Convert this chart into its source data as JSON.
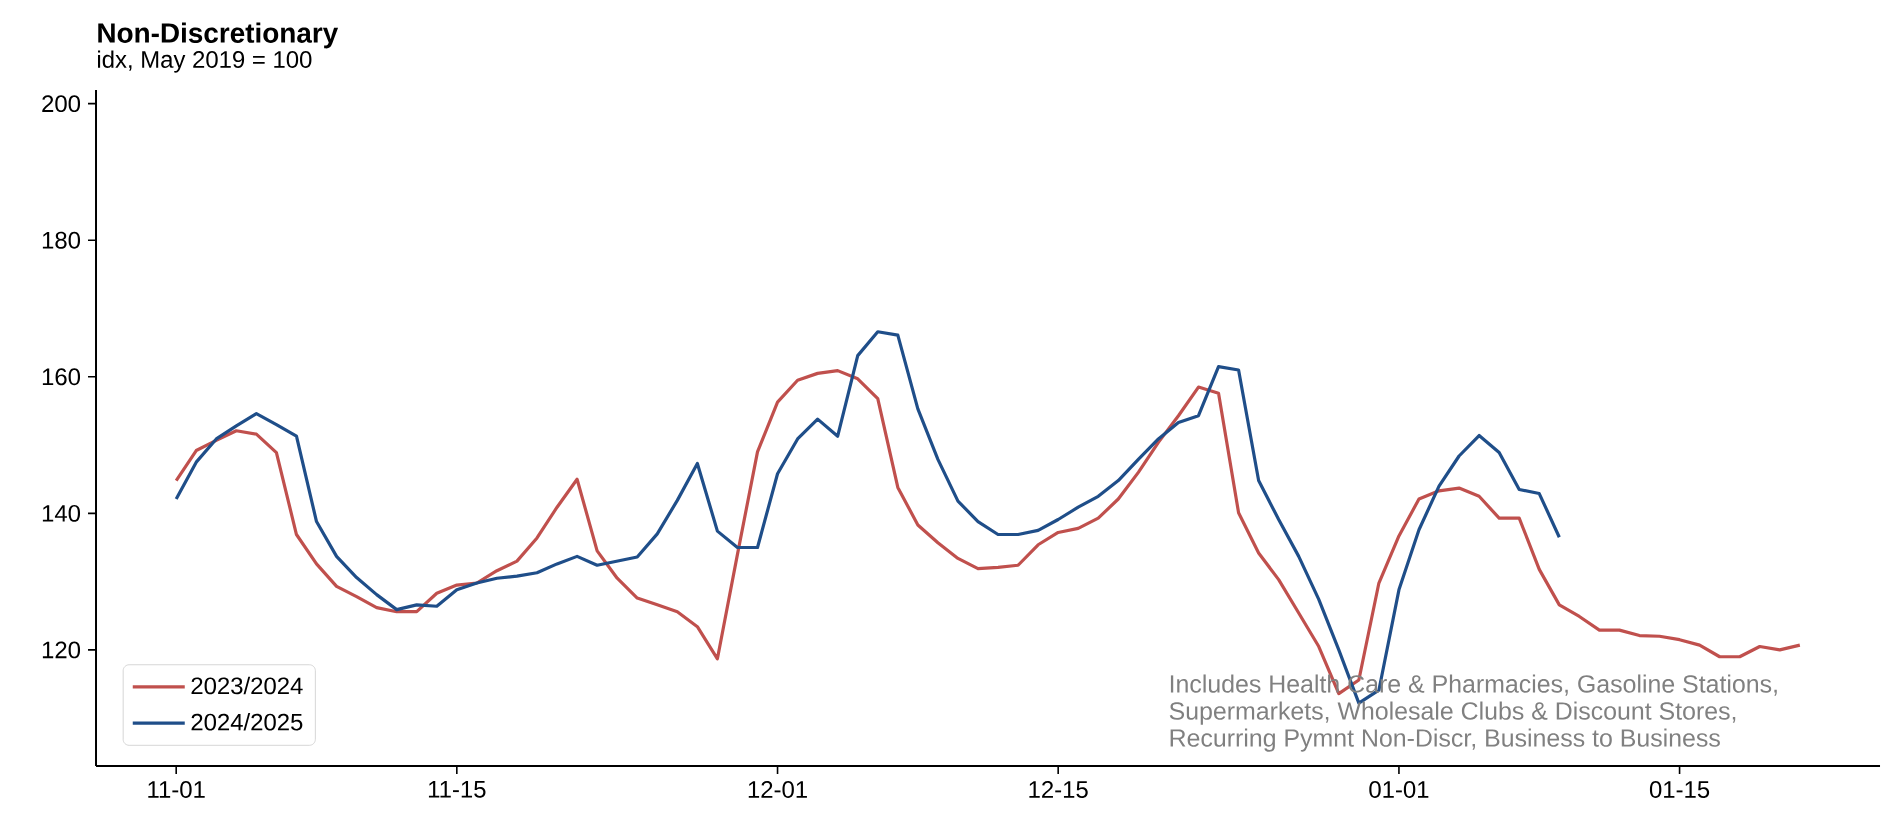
{
  "chart_data": {
    "type": "line",
    "title": "Non-Discretionary",
    "subtitle": "idx, May 2019 = 100",
    "categories": [
      "11-01",
      null,
      null,
      null,
      null,
      null,
      null,
      null,
      null,
      null,
      null,
      null,
      null,
      null,
      "11-15",
      null,
      null,
      null,
      null,
      null,
      null,
      null,
      null,
      null,
      null,
      null,
      null,
      null,
      null,
      null,
      "12-01",
      null,
      null,
      null,
      null,
      null,
      null,
      null,
      null,
      null,
      null,
      null,
      null,
      null,
      "12-15",
      null,
      null,
      null,
      null,
      null,
      null,
      null,
      null,
      null,
      null,
      null,
      null,
      null,
      null,
      null,
      null,
      "01-01",
      null,
      null,
      null,
      null,
      null,
      null,
      null,
      null,
      null,
      null,
      null,
      null,
      null,
      "01-15",
      null,
      null,
      null,
      null,
      null,
      null
    ],
    "series": [
      {
        "name": "2023/2024",
        "color": "#c0504d",
        "values": [
          144.8,
          149.2,
          150.7,
          152.1,
          151.6,
          148.9,
          136.9,
          132.6,
          129.3,
          127.8,
          126.2,
          125.6,
          125.6,
          128.3,
          129.5,
          129.8,
          131.6,
          133.0,
          136.4,
          140.9,
          145.0,
          134.5,
          130.5,
          127.6,
          126.6,
          125.6,
          123.4,
          118.7,
          134,
          149,
          156.3,
          159.5,
          160.5,
          160.9,
          159.7,
          156.8,
          143.8,
          138.3,
          135.7,
          133.4,
          131.9,
          132.1,
          132.4,
          135.4,
          137.2,
          137.8,
          139.3,
          142.1,
          146.0,
          150.4,
          154.3,
          158.5,
          157.6,
          140.1,
          134.2,
          130.3,
          125.4,
          120.5,
          113.6,
          115.6,
          129.8,
          136.7,
          142.1,
          143.3,
          143.7,
          142.5,
          139.3,
          139.3,
          131.8,
          126.6,
          124.9,
          122.9,
          122.9,
          122.1,
          122.0,
          121.5,
          120.7,
          119.0,
          119.0,
          120.5,
          120.0,
          120.7
        ]
      },
      {
        "name": "2024/2025",
        "color": "#1f4e89",
        "values": [
          142.1,
          147.5,
          150.9,
          152.8,
          154.6,
          153.0,
          151.3,
          138.8,
          133.7,
          130.6,
          128.1,
          125.9,
          126.6,
          126.4,
          128.8,
          129.8,
          130.5,
          130.8,
          131.3,
          132.6,
          133.7,
          132.4,
          133.0,
          133.6,
          137.0,
          141.9,
          147.3,
          137.4,
          135.0,
          135.0,
          145.8,
          150.9,
          153.8,
          151.3,
          163.1,
          166.6,
          166.1,
          155.3,
          147.9,
          141.8,
          138.8,
          136.9,
          136.9,
          137.5,
          139.1,
          140.9,
          142.5,
          144.8,
          147.9,
          150.9,
          153.3,
          154.3,
          161.5,
          161.0,
          144.8,
          139.1,
          133.7,
          127.4,
          120.0,
          112.2,
          114.1,
          128.8,
          137.6,
          144.0,
          148.4,
          151.4,
          148.9,
          143.5,
          142.9,
          136.5,
          null,
          null,
          null,
          null,
          null,
          null,
          null,
          null,
          null,
          null,
          null,
          null
        ]
      }
    ],
    "ylim": [
      103,
      202
    ],
    "yticks": [
      120,
      140,
      160,
      180,
      200
    ],
    "grid": false,
    "legend": "bottom left",
    "marker": "none",
    "line_style": "solid",
    "annotations": [
      "Includes Health Care & Pharmacies, Gasoline Stations,",
      "Supermarkets, Wholesale Clubs & Discount Stores,",
      "Recurring Pymnt Non-Discr, Business to Business"
    ]
  }
}
